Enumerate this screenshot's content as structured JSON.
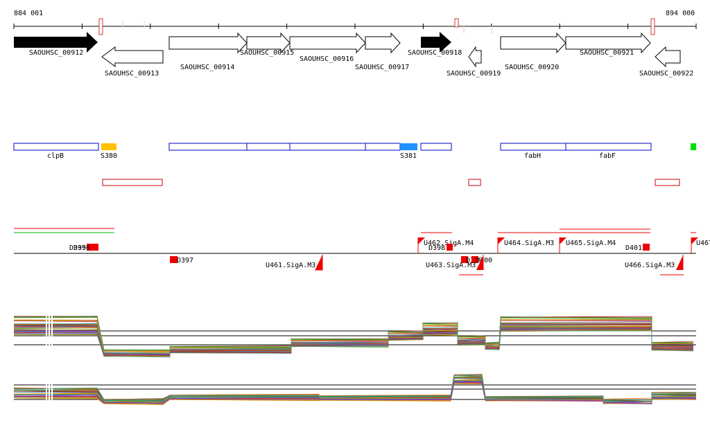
{
  "coords": {
    "start_label": "884 001",
    "end_label": "894 000"
  },
  "genes": [
    {
      "id": "SAOUHSC_00912",
      "filled": true
    },
    {
      "id": "SAOUHSC_00913",
      "filled": false
    },
    {
      "id": "SAOUHSC_00914",
      "filled": false
    },
    {
      "id": "SAOUHSC_00915",
      "filled": false
    },
    {
      "id": "SAOUHSC_00916",
      "filled": false
    },
    {
      "id": "SAOUHSC_00917",
      "filled": false
    },
    {
      "id": "SAOUHSC_00918",
      "filled": true
    },
    {
      "id": "SAOUHSC_00919",
      "filled": false
    },
    {
      "id": "SAOUHSC_00920",
      "filled": false
    },
    {
      "id": "SAOUHSC_00921",
      "filled": false
    },
    {
      "id": "SAOUHSC_00922",
      "filled": false
    }
  ],
  "features": [
    {
      "label": "clpB"
    },
    {
      "label": "S380",
      "color": "#ffc000"
    },
    {
      "label": "S381",
      "color": "#1e90ff"
    },
    {
      "label": "fabH"
    },
    {
      "label": "fabF"
    },
    {
      "label": "",
      "color": "#00e000"
    }
  ],
  "sites": [
    {
      "label": "D395"
    },
    {
      "label": "D396"
    },
    {
      "label": "D397"
    },
    {
      "label": "U461.SigA.M3"
    },
    {
      "label": "U462.SigA.M4"
    },
    {
      "label": "D398"
    },
    {
      "label": "D399"
    },
    {
      "label": "D400"
    },
    {
      "label": "U463.SigA.M3"
    },
    {
      "label": "U464.SigA.M3"
    },
    {
      "label": "U465.SigA.M4"
    },
    {
      "label": "D401"
    },
    {
      "label": "U466.SigA.M3"
    },
    {
      "label": "U467"
    }
  ],
  "colors": {
    "gene_fill": "#000000",
    "box_blue": "#0000cc",
    "box_red": "#cc0000",
    "site_red": "#ee0000"
  }
}
